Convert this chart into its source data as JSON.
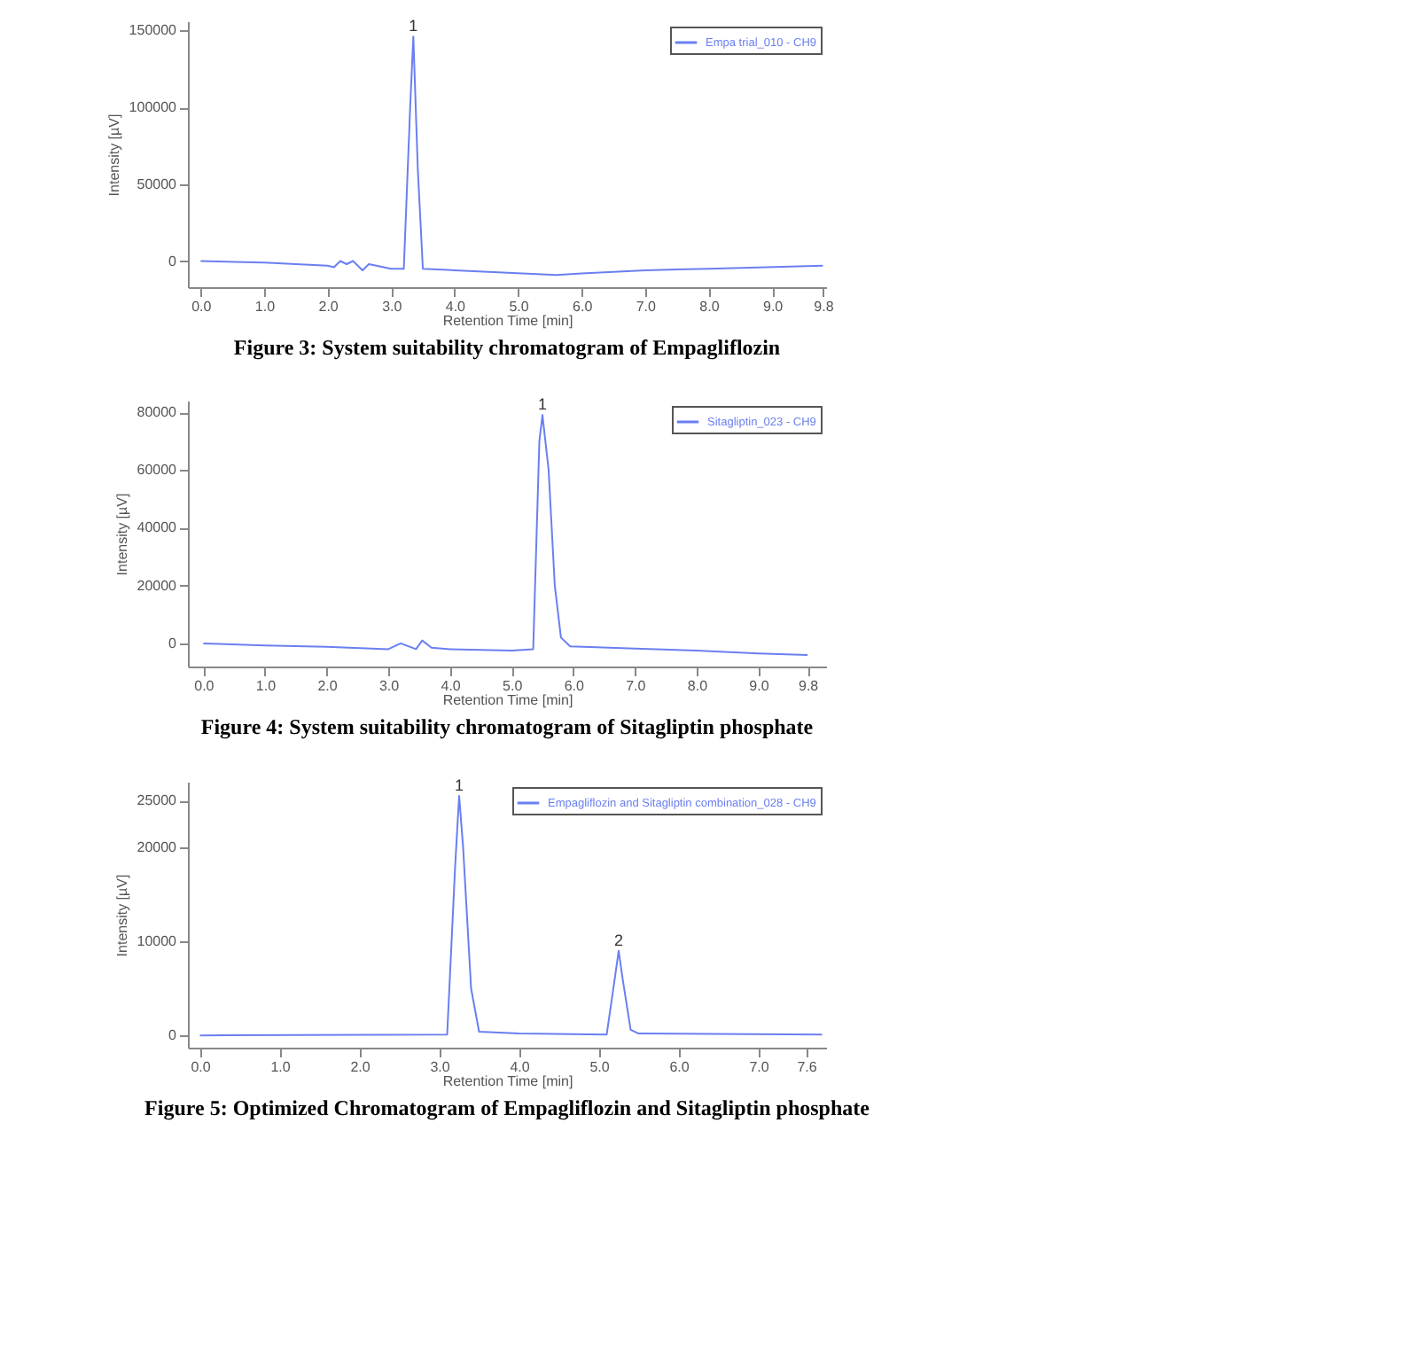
{
  "chart_data": [
    {
      "type": "line",
      "title": "Figure 3: System suitability chromatogram of Empagliflozin",
      "xlabel": "Retention Time [min]",
      "ylabel": "Intensity [µV]",
      "legend": "top right",
      "grid": false,
      "xlim": [
        -0.2,
        9.85
      ],
      "xticks": [
        {
          "value": 0,
          "label": "0.0"
        },
        {
          "value": 1,
          "label": "1.0"
        },
        {
          "value": 2,
          "label": "2.0"
        },
        {
          "value": 3,
          "label": "3.0"
        },
        {
          "value": 4,
          "label": "4.0"
        },
        {
          "value": 5,
          "label": "5.0"
        },
        {
          "value": 6,
          "label": "6.0"
        },
        {
          "value": 7,
          "label": "7.0"
        },
        {
          "value": 8,
          "label": "8.0"
        },
        {
          "value": 9,
          "label": "9.0"
        },
        {
          "value": 9.8,
          "label": "9.8"
        }
      ],
      "ylim": [
        -17000,
        156000
      ],
      "yticks": [
        0,
        50000,
        100000,
        150000
      ],
      "series": [
        {
          "name": "Empa trial_010 - CH9",
          "color": "#6a7ff0",
          "x": [
            0,
            1,
            2,
            2.1,
            2.2,
            2.3,
            2.4,
            2.55,
            2.65,
            3.0,
            3.2,
            3.3,
            3.35,
            3.42,
            3.5,
            4.0,
            5.6,
            6.0,
            7.0,
            8.0,
            9.8
          ],
          "values": [
            0,
            -1000,
            -3000,
            -4000,
            0,
            -2000,
            0,
            -6000,
            -2000,
            -5000,
            -5000,
            100000,
            146000,
            60000,
            -5000,
            -6000,
            -9000,
            -8000,
            -6000,
            -5000,
            -3000
          ]
        }
      ],
      "annotations": [
        {
          "text": "1",
          "x": 3.35,
          "y": 146000
        }
      ]
    },
    {
      "type": "line",
      "title": "Figure 4: System suitability chromatogram of Sitagliptin phosphate",
      "xlabel": "Retention Time [min]",
      "ylabel": "Intensity [µV]",
      "legend": "top right",
      "grid": false,
      "xlim": [
        -0.25,
        10.1
      ],
      "xticks": [
        {
          "value": 0,
          "label": "0.0"
        },
        {
          "value": 1,
          "label": "1.0"
        },
        {
          "value": 2,
          "label": "2.0"
        },
        {
          "value": 3,
          "label": "3.0"
        },
        {
          "value": 4,
          "label": "4.0"
        },
        {
          "value": 5,
          "label": "5.0"
        },
        {
          "value": 6,
          "label": "6.0"
        },
        {
          "value": 7,
          "label": "7.0"
        },
        {
          "value": 8,
          "label": "8.0"
        },
        {
          "value": 9,
          "label": "9.0"
        },
        {
          "value": 9.8,
          "label": "9.8"
        }
      ],
      "ylim": [
        -8000,
        84000
      ],
      "yticks": [
        0,
        20000,
        40000,
        60000,
        80000
      ],
      "series": [
        {
          "name": "Sitagliptin_023 - CH9",
          "color": "#6a7ff0",
          "x": [
            0,
            1,
            2,
            3,
            3.2,
            3.45,
            3.55,
            3.7,
            4,
            5,
            5.35,
            5.45,
            5.5,
            5.6,
            5.7,
            5.8,
            5.95,
            7,
            8,
            9,
            9.8
          ],
          "values": [
            0,
            -700,
            -1200,
            -2000,
            0,
            -2000,
            1000,
            -1500,
            -2000,
            -2500,
            -2000,
            70000,
            79000,
            60000,
            20000,
            2000,
            -1000,
            -1800,
            -2500,
            -3500,
            -4000
          ]
        }
      ],
      "annotations": [
        {
          "text": "1",
          "x": 5.5,
          "y": 79000
        }
      ]
    },
    {
      "type": "line",
      "title": "Figure 5: Optimized Chromatogram of Empagliflozin and Sitagliptin phosphate",
      "xlabel": "Retention Time [min]",
      "ylabel": "Intensity [µV]",
      "legend": "top right",
      "grid": false,
      "xlim": [
        -0.15,
        7.85
      ],
      "xticks": [
        {
          "value": 0,
          "label": "0.0"
        },
        {
          "value": 1,
          "label": "1.0"
        },
        {
          "value": 2,
          "label": "2.0"
        },
        {
          "value": 3,
          "label": "3.0"
        },
        {
          "value": 4,
          "label": "4.0"
        },
        {
          "value": 5,
          "label": "5.0"
        },
        {
          "value": 6,
          "label": "6.0"
        },
        {
          "value": 7,
          "label": "7.0"
        },
        {
          "value": 7.6,
          "label": "7.6"
        }
      ],
      "ylim": [
        -1300,
        27000
      ],
      "yticks": [
        0,
        10000,
        20000,
        25000
      ],
      "series": [
        {
          "name": "Empagliflozin and Sitagliptin combination_028 - CH9",
          "color": "#6a7ff0",
          "x": [
            0,
            3.1,
            3.2,
            3.25,
            3.3,
            3.4,
            3.5,
            4,
            5.1,
            5.2,
            5.25,
            5.3,
            5.4,
            5.5,
            7.8
          ],
          "values": [
            0,
            100,
            18000,
            25500,
            20000,
            5000,
            400,
            200,
            100,
            6000,
            9000,
            6000,
            600,
            200,
            100
          ]
        }
      ],
      "annotations": [
        {
          "text": "1",
          "x": 3.25,
          "y": 25500
        },
        {
          "text": "2",
          "x": 5.25,
          "y": 9000
        }
      ]
    }
  ]
}
